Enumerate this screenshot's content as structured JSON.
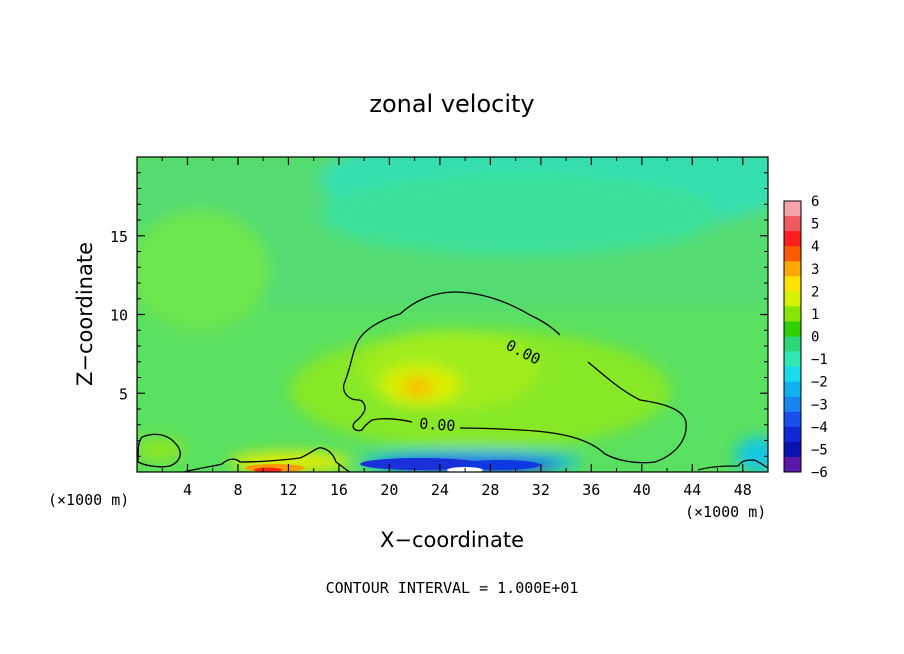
{
  "chart_data": {
    "type": "heatmap",
    "title": "zonal velocity",
    "xlabel": "X−coordinate",
    "ylabel": "Z−coordinate",
    "x_unit_left": "(×1000 m)",
    "x_unit_right": "(×1000 m)",
    "xlim": [
      0,
      50
    ],
    "ylim": [
      0,
      20
    ],
    "x_ticks": [
      {
        "value": 4,
        "label": "4"
      },
      {
        "value": 8,
        "label": "8"
      },
      {
        "value": 12,
        "label": "12"
      },
      {
        "value": 16,
        "label": "16"
      },
      {
        "value": 20,
        "label": "20"
      },
      {
        "value": 24,
        "label": "24"
      },
      {
        "value": 28,
        "label": "28"
      },
      {
        "value": 32,
        "label": "32"
      },
      {
        "value": 36,
        "label": "36"
      },
      {
        "value": 40,
        "label": "40"
      },
      {
        "value": 44,
        "label": "44"
      },
      {
        "value": 48,
        "label": "48"
      }
    ],
    "y_ticks": [
      {
        "value": 5,
        "label": "5"
      },
      {
        "value": 10,
        "label": "10"
      },
      {
        "value": 15,
        "label": "15"
      }
    ],
    "colorbar": {
      "range": [
        -6,
        6
      ],
      "labels": [
        "6",
        "5",
        "4",
        "3",
        "2",
        "1",
        "0",
        "−1",
        "−2",
        "−3",
        "−4",
        "−5",
        "−6"
      ],
      "colors": [
        "#f4a3a8",
        "#ee5a60",
        "#ff1e1e",
        "#ff5a00",
        "#ffa800",
        "#ffe200",
        "#d6f200",
        "#86e600",
        "#30d000",
        "#2bd878",
        "#2ee8b4",
        "#18dcec",
        "#10b0ee",
        "#1884f0",
        "#1a4eee",
        "#1028d8",
        "#0a12b0",
        "#5a18a8"
      ]
    },
    "contour_labels": [
      {
        "text": "0.00",
        "x": 30.6,
        "y": 7.6,
        "angle": 27
      },
      {
        "text": "0.00",
        "x": 23.8,
        "y": 3.0,
        "angle": 4
      }
    ],
    "footer": "CONTOUR INTERVAL = 1.000E+01"
  }
}
